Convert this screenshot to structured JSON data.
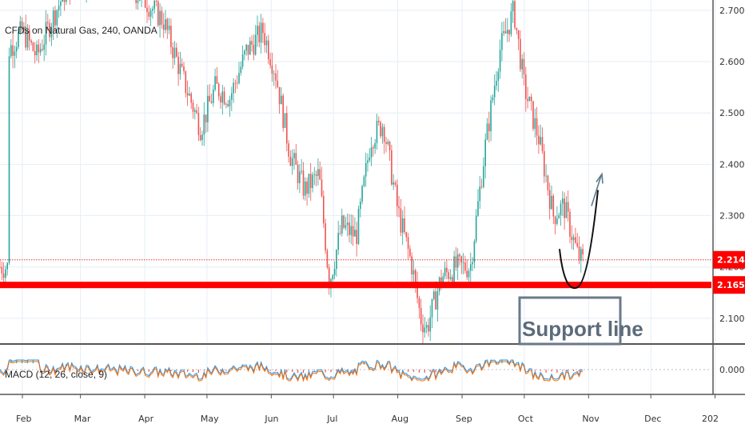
{
  "chart_data": {
    "type": "candlestick",
    "title": "CFDs on Natural Gas, 240, OANDA",
    "x_ticks": [
      "Feb",
      "Mar",
      "Apr",
      "May",
      "Jun",
      "Jul",
      "Aug",
      "Sep",
      "Oct",
      "Nov",
      "Dec",
      "202"
    ],
    "y_ticks": [
      "2.700",
      "2.600",
      "2.500",
      "2.400",
      "2.300",
      "2.200",
      "2.100"
    ],
    "ylim": [
      2.05,
      2.72
    ],
    "grid": true,
    "colors": {
      "up": "#26a69a",
      "down": "#ef5350",
      "support": "#ff0000",
      "arrow": "#5b7a8c",
      "grid": "#e6eef6"
    },
    "price_series": [
      {
        "date": "Jan 25",
        "close": 2.62
      },
      {
        "date": "Feb 1",
        "close": 2.66
      },
      {
        "date": "Feb 8",
        "close": 2.61
      },
      {
        "date": "Feb 15",
        "close": 2.68
      },
      {
        "date": "Feb 22",
        "close": 2.74
      },
      {
        "date": "Mar 1",
        "close": 2.76
      },
      {
        "date": "Mar 15",
        "close": 2.78
      },
      {
        "date": "Apr 1",
        "close": 2.72
      },
      {
        "date": "Apr 10",
        "close": 2.68
      },
      {
        "date": "Apr 20",
        "close": 2.56
      },
      {
        "date": "Apr 28",
        "close": 2.47
      },
      {
        "date": "May 5",
        "close": 2.55
      },
      {
        "date": "May 12",
        "close": 2.53
      },
      {
        "date": "May 20",
        "close": 2.62
      },
      {
        "date": "May 28",
        "close": 2.66
      },
      {
        "date": "Jun 3",
        "close": 2.58
      },
      {
        "date": "Jun 10",
        "close": 2.42
      },
      {
        "date": "Jun 17",
        "close": 2.35
      },
      {
        "date": "Jun 24",
        "close": 2.38
      },
      {
        "date": "Jun 29",
        "close": 2.17
      },
      {
        "date": "Jul 5",
        "close": 2.28
      },
      {
        "date": "Jul 12",
        "close": 2.26
      },
      {
        "date": "Jul 19",
        "close": 2.45
      },
      {
        "date": "Jul 25",
        "close": 2.48
      },
      {
        "date": "Aug 1",
        "close": 2.31
      },
      {
        "date": "Aug 8",
        "close": 2.2
      },
      {
        "date": "Aug 12",
        "close": 2.1
      },
      {
        "date": "Aug 15",
        "close": 2.08
      },
      {
        "date": "Aug 22",
        "close": 2.18
      },
      {
        "date": "Aug 29",
        "close": 2.2
      },
      {
        "date": "Sep 5",
        "close": 2.2
      },
      {
        "date": "Sep 12",
        "close": 2.43
      },
      {
        "date": "Sep 19",
        "close": 2.62
      },
      {
        "date": "Sep 26",
        "close": 2.7
      },
      {
        "date": "Oct 1",
        "close": 2.55
      },
      {
        "date": "Oct 8",
        "close": 2.45
      },
      {
        "date": "Oct 15",
        "close": 2.3
      },
      {
        "date": "Oct 20",
        "close": 2.32
      },
      {
        "date": "Oct 27",
        "close": 2.22
      },
      {
        "date": "Nov 1",
        "close": 2.2
      }
    ],
    "current_price": {
      "label": "2.214",
      "value": 2.214
    },
    "support_level": {
      "label": "2.165",
      "value": 2.165
    },
    "annotation": {
      "text": "Support line"
    },
    "indicator": {
      "name": "MACD (12, 26, close, 9)",
      "y_ticks": [
        "0.000"
      ],
      "zero": 0.0
    }
  }
}
